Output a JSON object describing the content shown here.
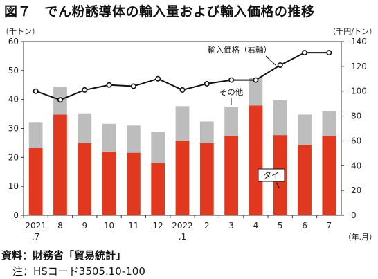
{
  "header": {
    "title": "図７　でん粉誘導体の輸入量および輸入価格の推移"
  },
  "chart_data": {
    "type": "bar+line",
    "title": "図７　でん粉誘導体の輸入量および輸入価格の推移",
    "ylabel_left": "（千トン）",
    "ylabel_right": "（千円/トン）",
    "xlabel": "（年.月）",
    "categories": [
      [
        "2021",
        ".7"
      ],
      [
        "8",
        ""
      ],
      [
        "9",
        ""
      ],
      [
        "10",
        ""
      ],
      [
        "11",
        ""
      ],
      [
        "12",
        ""
      ],
      [
        "2022",
        ".1"
      ],
      [
        "2",
        ""
      ],
      [
        "3",
        ""
      ],
      [
        "4",
        ""
      ],
      [
        "5",
        ""
      ],
      [
        "6",
        ""
      ],
      [
        "7",
        ""
      ]
    ],
    "left_axis": {
      "min": 0,
      "max": 60,
      "ticks": [
        0,
        10,
        20,
        30,
        40,
        50,
        60
      ]
    },
    "right_axis": {
      "min": 0,
      "max": 140,
      "ticks": [
        0,
        20,
        40,
        60,
        80,
        100,
        120,
        140
      ]
    },
    "grid": false,
    "series": [
      {
        "name": "タイ",
        "kind": "stacked-bar",
        "axis": "left",
        "color": "#e0391f",
        "values": [
          23.2,
          34.8,
          24.9,
          22.0,
          21.6,
          18.1,
          25.8,
          24.9,
          27.5,
          37.9,
          27.7,
          24.3,
          27.5
        ]
      },
      {
        "name": "その他",
        "kind": "stacked-bar",
        "axis": "left",
        "color": "#bdbdbd",
        "values": [
          9.0,
          9.6,
          10.3,
          9.6,
          9.4,
          10.8,
          11.9,
          7.5,
          10.0,
          9.6,
          12.0,
          10.5,
          8.5
        ]
      },
      {
        "name": "輸入価格（右軸）",
        "kind": "line",
        "axis": "right",
        "color": "#111111",
        "values": [
          100,
          93,
          101,
          105,
          104,
          110,
          101,
          106,
          109,
          109,
          121,
          131,
          131
        ]
      }
    ],
    "annotations": {
      "price_label": "輸入価格（右軸）",
      "other_label": "その他",
      "thai_label": "タイ"
    }
  },
  "footer": {
    "source": "資料：財務省「貿易統計」",
    "note": "注：HSコード3505.10-100"
  }
}
